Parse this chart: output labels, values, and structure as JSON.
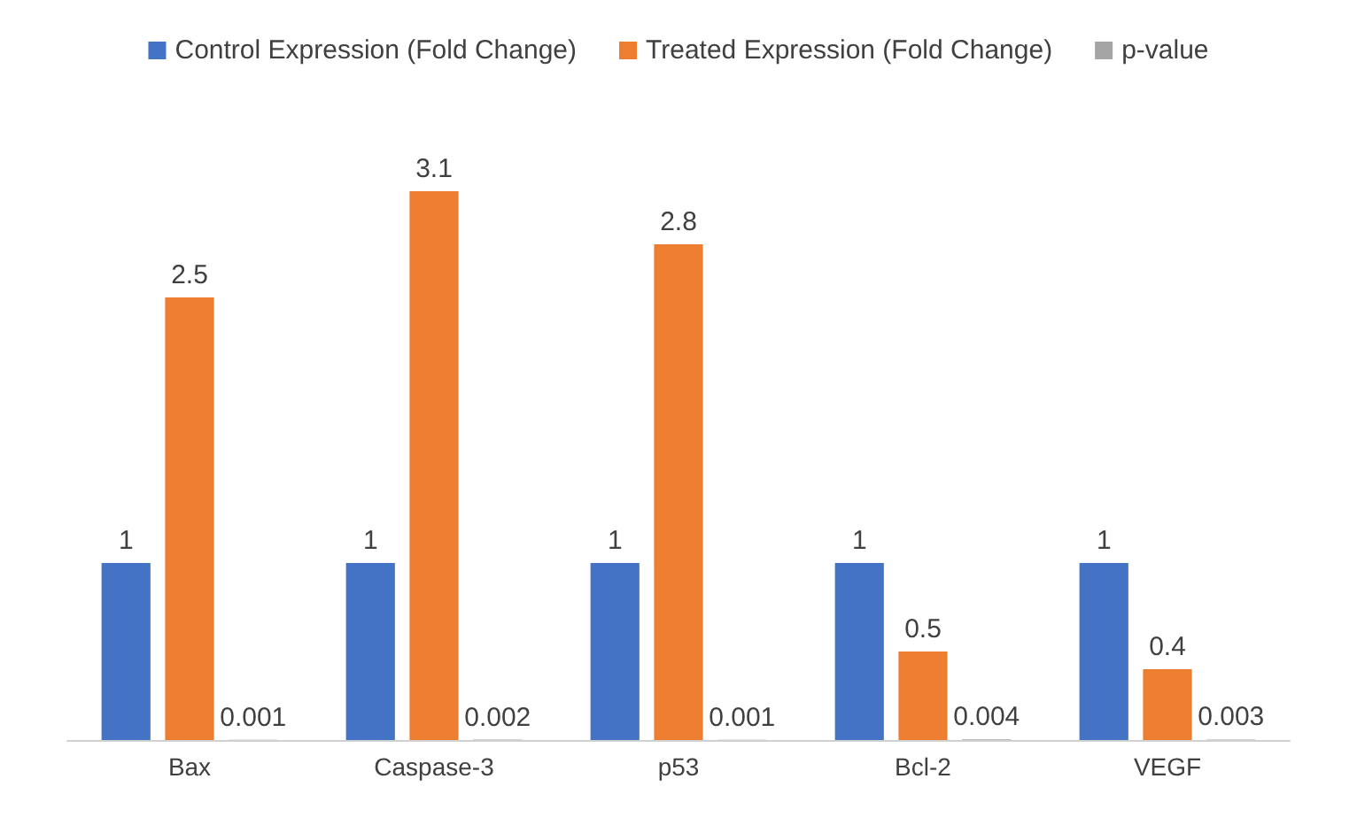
{
  "chart_data": {
    "type": "bar",
    "categories": [
      "Bax",
      "Caspase-3",
      "p53",
      "Bcl-2",
      "VEGF"
    ],
    "series": [
      {
        "name": "Control Expression (Fold Change)",
        "color": "#4472c4",
        "values": [
          1,
          1,
          1,
          1,
          1
        ]
      },
      {
        "name": "Treated Expression (Fold Change)",
        "color": "#ed7d31",
        "values": [
          2.5,
          3.1,
          2.8,
          0.5,
          0.4
        ]
      },
      {
        "name": "p-value",
        "color": "#a5a5a5",
        "values": [
          0.001,
          0.002,
          0.001,
          0.004,
          0.003
        ]
      }
    ],
    "data_labels": true,
    "legend": "top"
  }
}
